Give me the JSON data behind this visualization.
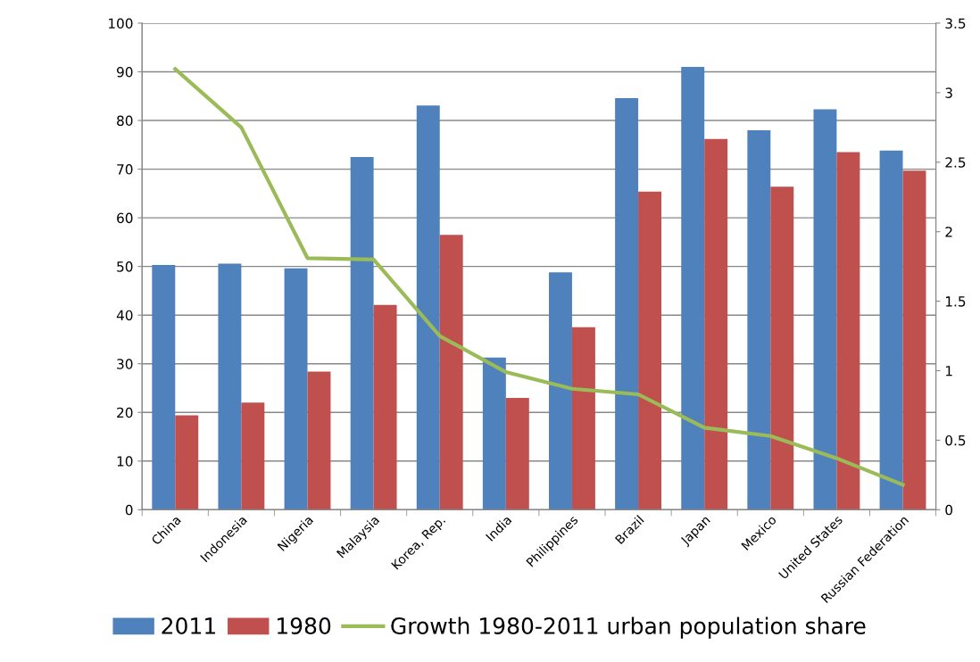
{
  "chart_data": {
    "type": "bar",
    "categories": [
      "China",
      "Indonesia",
      "Nigeria",
      "Malaysia",
      "Korea, Rep.",
      "India",
      "Philippines",
      "Brazil",
      "Japan",
      "Mexico",
      "United States",
      "Russian Federation"
    ],
    "series": [
      {
        "name": "2011",
        "color": "#4f81bd",
        "values": [
          50.3,
          50.6,
          49.6,
          72.5,
          83.1,
          31.3,
          48.8,
          84.6,
          91.0,
          78.0,
          82.3,
          73.8
        ]
      },
      {
        "name": "1980",
        "color": "#c0504d",
        "values": [
          19.4,
          22.0,
          28.4,
          42.1,
          56.5,
          23.0,
          37.5,
          65.4,
          76.2,
          66.4,
          73.5,
          69.7
        ]
      },
      {
        "name": "Growth 1980-2011 urban population share",
        "color": "#9bbb59",
        "type": "line",
        "axis": "y2",
        "values": [
          3.17,
          2.75,
          1.81,
          1.8,
          1.25,
          0.99,
          0.87,
          0.83,
          0.59,
          0.53,
          0.37,
          0.18
        ]
      }
    ],
    "ylim": [
      0,
      100
    ],
    "yticks": [
      0,
      10,
      20,
      30,
      40,
      50,
      60,
      70,
      80,
      90,
      100
    ],
    "y2lim": [
      0,
      3.5
    ],
    "y2ticks": [
      0,
      0.5,
      1,
      1.5,
      2,
      2.5,
      3,
      3.5
    ],
    "grid": "y",
    "legend": "bottom",
    "marker": "none"
  }
}
